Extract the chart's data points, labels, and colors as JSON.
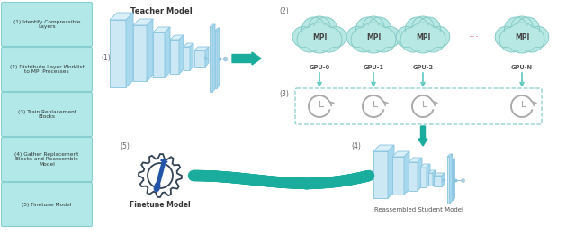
{
  "bg_color": "#ffffff",
  "sidebar_box_color": "#b2e8e8",
  "sidebar_box_edge": "#88d0d0",
  "sidebar_texts": [
    "(1) Identify Compressible\nLayers",
    "(2) Distribute Layer Worklist\nto MPI Processes",
    "(3) Train Replacement\nBlocks",
    "(4) Gather Replacement\nBlocks and Reassemble\nModel",
    "(5) Finetune Model"
  ],
  "title_teacher": "Teacher Model",
  "title_finetune": "Finetune Model",
  "title_reassembled": "Reassembled Student Model",
  "teal": "#1aad9e",
  "teal_light": "#5cc8c0",
  "cloud_color": "#b8e8e4",
  "cloud_edge": "#88ccc8",
  "layer_face": "#cce8f4",
  "layer_top": "#daf0f8",
  "layer_side": "#a8d8ee",
  "layer_edge": "#88c4e0",
  "gpu_labels": [
    "GPU-0",
    "GPU-1",
    "GPU-2",
    "GPU-N"
  ],
  "pink_dots": "#e07090",
  "dashed_color": "#88ccc8",
  "gear_color": "#334455",
  "screwdriver_color": "#2255aa"
}
